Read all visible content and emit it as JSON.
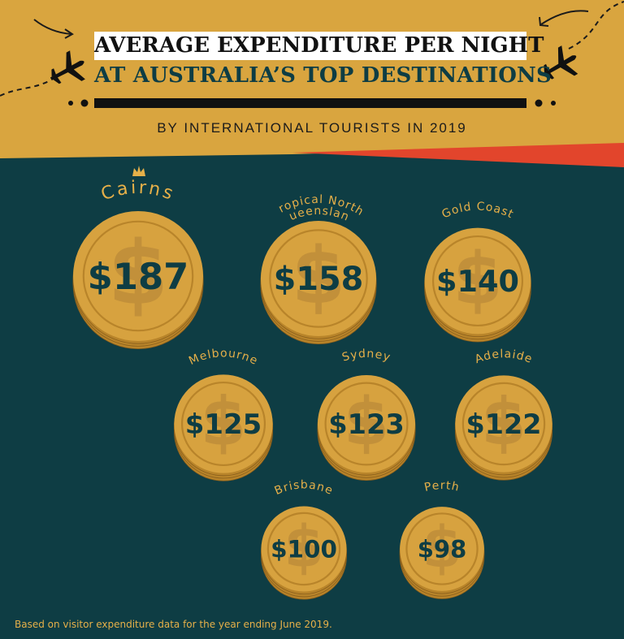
{
  "header": {
    "title_line1": "AVERAGE EXPENDITURE PER NIGHT",
    "title_line2": "AT AUSTRALIA’S TOP DESTINATIONS",
    "subtitle": "BY INTERNATIONAL TOURISTS IN 2019"
  },
  "footnote": "Based on visitor expenditure data for the year ending June 2019.",
  "icons": [
    "airplane-icon",
    "crown-icon",
    "dollar-sign-icon",
    "arrow-icon"
  ],
  "colors": {
    "header_bg": "#d9a53f",
    "body_bg": "#0e3d44",
    "coin": "#d7a23f",
    "coin_rim": "#b8842a",
    "coin_text": "#0e3d44",
    "label": "#e6b049",
    "accent_red": "#e2452c"
  },
  "chart_data": {
    "type": "bubble",
    "title": "AVERAGE EXPENDITURE PER NIGHT AT AUSTRALIA’S TOP DESTINATIONS",
    "subtitle": "BY INTERNATIONAL TOURISTS IN 2019",
    "unit": "$",
    "categories": [
      "Cairns",
      "Tropical North Queensland",
      "Gold Coast",
      "Melbourne",
      "Sydney",
      "Adelaide",
      "Brisbane",
      "Perth"
    ],
    "values": [
      187,
      158,
      140,
      125,
      123,
      122,
      100,
      98
    ],
    "value_labels": [
      "$187",
      "$158",
      "$140",
      "$125",
      "$123",
      "$122",
      "$100",
      "$98"
    ],
    "highlight": "Cairns"
  }
}
